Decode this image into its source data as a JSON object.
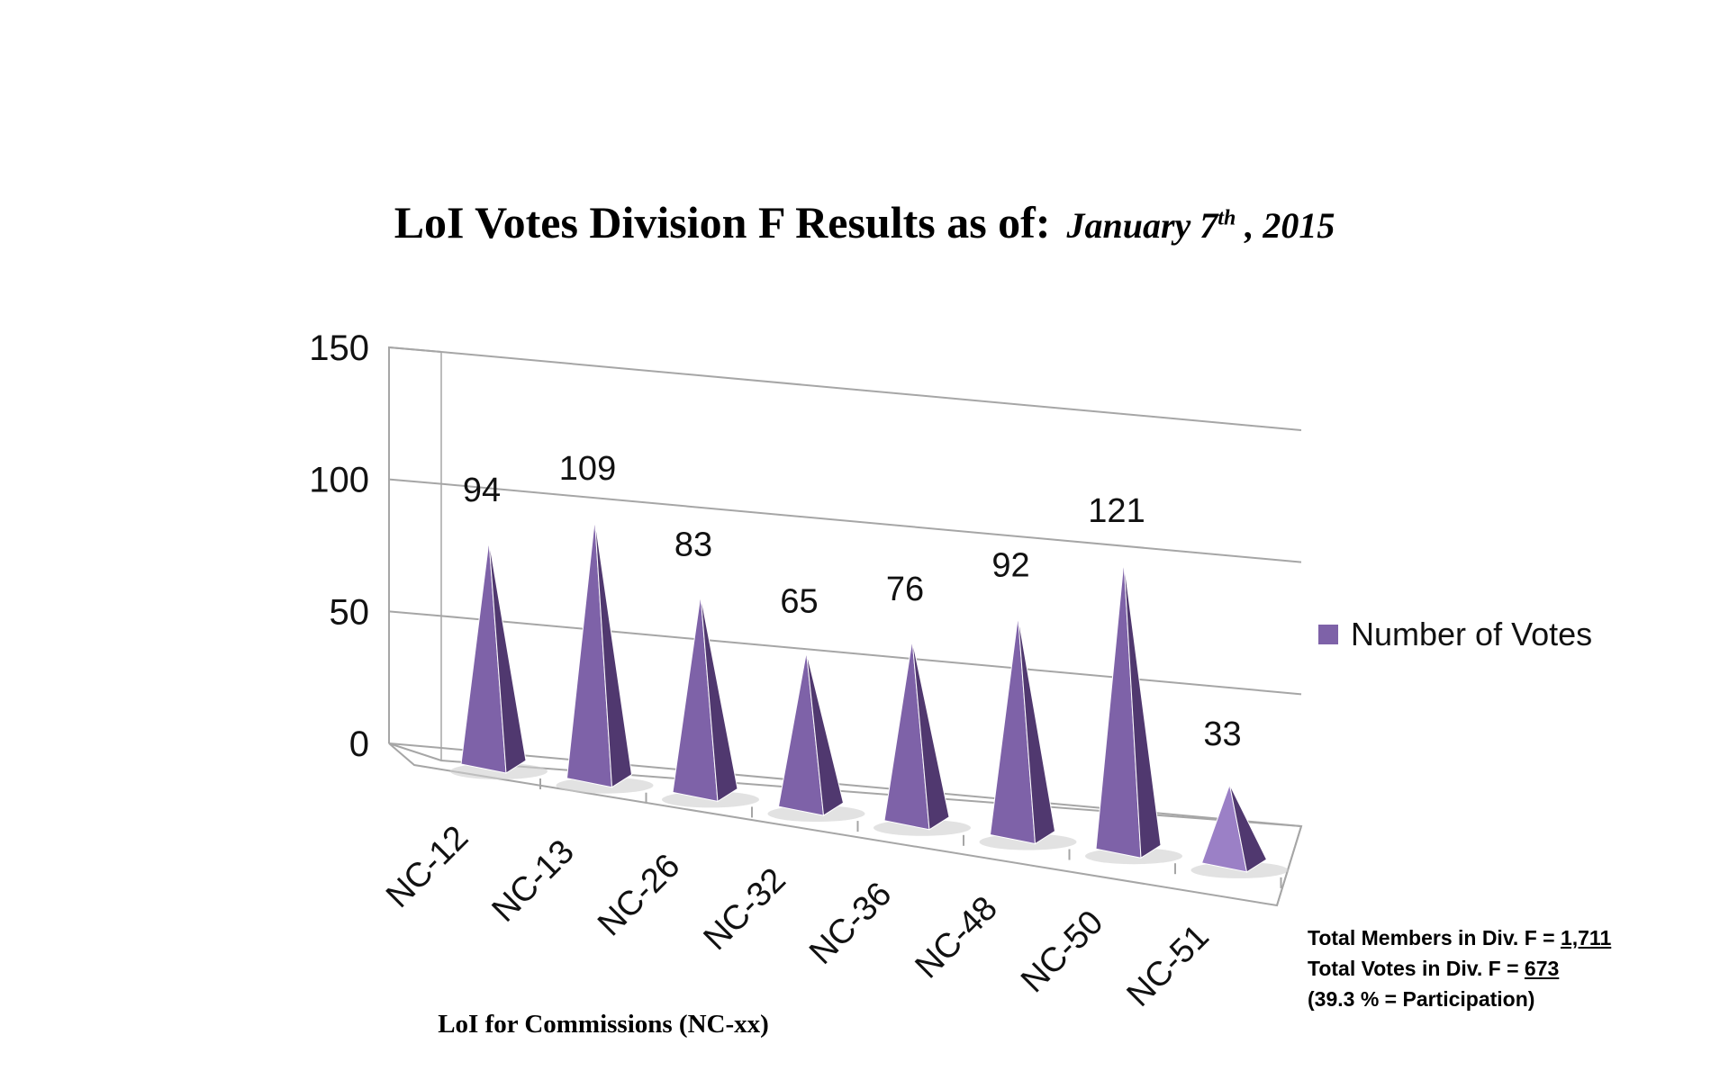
{
  "title": {
    "main": "LoI Votes Division F Results as of:",
    "date_prefix": "January 7",
    "date_sup": "th",
    "date_suffix": " , 2015"
  },
  "legend": {
    "label": "Number of Votes"
  },
  "xaxis_title": "LoI for Commissions (NC-xx)",
  "notes": {
    "members_label": "Total Members in Div. F = ",
    "members_value": "1,711",
    "votes_label": "Total Votes in Div. F = ",
    "votes_value": "673",
    "participation": "(39.3 % = Participation)"
  },
  "colors": {
    "bar_front": "#7e62a8",
    "bar_side": "#50386f",
    "bar_last": "#9b80c6",
    "grid": "#a6a6a6"
  },
  "chart_data": {
    "type": "bar",
    "style": "3d-pyramid",
    "categories": [
      "NC-12",
      "NC-13",
      "NC-26",
      "NC-32",
      "NC-36",
      "NC-48",
      "NC-50",
      "NC-51"
    ],
    "series": [
      {
        "name": "Number of Votes",
        "values": [
          94,
          109,
          83,
          65,
          76,
          92,
          121,
          33
        ]
      }
    ],
    "data_labels": [
      "94",
      "109",
      "83",
      "65",
      "76",
      "92",
      "121",
      "33"
    ],
    "yticks": [
      "0",
      "50",
      "100",
      "150"
    ],
    "ylim": [
      0,
      150
    ],
    "xlabel": "LoI for Commissions (NC-xx)",
    "ylabel": "",
    "grid": true,
    "legend_position": "right"
  }
}
